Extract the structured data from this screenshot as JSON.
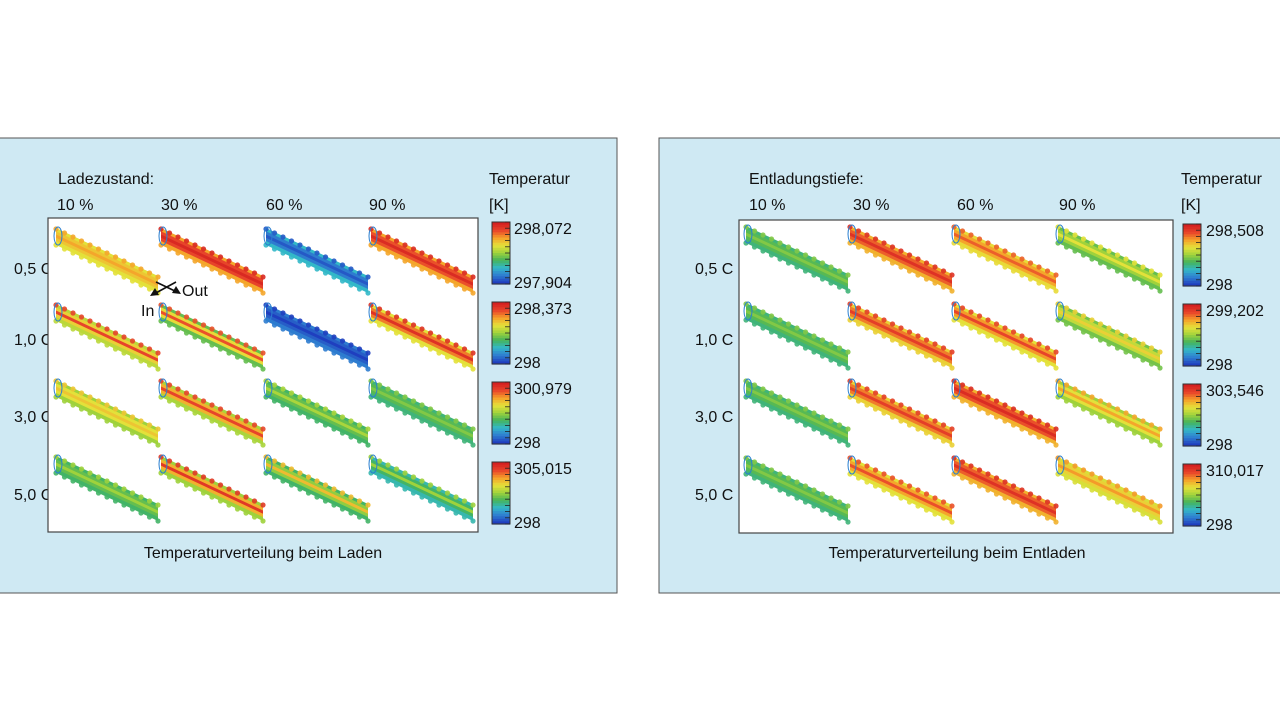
{
  "colors": {
    "panel_bg": "#cfe9f3",
    "panel_border": "#555555",
    "plot_bg": "#ffffff",
    "colormap": [
      "#1f3fbf",
      "#2f7fd0",
      "#33b8c8",
      "#45b35a",
      "#9fd23c",
      "#e6e23a",
      "#f5a12a",
      "#e8452a",
      "#d42020"
    ]
  },
  "panels": [
    {
      "id": "charging",
      "header_label": "Ladezustand:",
      "columns": [
        "10 %",
        "30 %",
        "60 %",
        "90 %"
      ],
      "rows": [
        "0,5 C",
        "1,0 C",
        "3,0 C",
        "5,0 C"
      ],
      "legend_title": "Temperatur",
      "legend_unit": "[K]",
      "caption": "Temperaturverteilung beim Laden",
      "scales": [
        {
          "max": "298,072",
          "min": "297,904"
        },
        {
          "max": "298,373",
          "min": "298"
        },
        {
          "max": "300,979",
          "min": "298"
        },
        {
          "max": "305,015",
          "min": "298"
        }
      ],
      "annotations": {
        "out_label": "Out",
        "in_label": "In"
      },
      "cells": [
        [
          {
            "base": 0.68,
            "edge": 0.62,
            "accent": 0.74
          },
          {
            "base": 0.88,
            "edge": 0.74,
            "accent": 0.97
          },
          {
            "base": 0.12,
            "edge": 0.25,
            "accent": 0.05
          },
          {
            "base": 0.86,
            "edge": 0.74,
            "accent": 0.96
          }
        ],
        [
          {
            "base": 0.66,
            "edge": 0.55,
            "accent": 0.88
          },
          {
            "base": 0.64,
            "edge": 0.42,
            "accent": 0.86
          },
          {
            "base": 0.06,
            "edge": 0.12,
            "accent": 0.0
          },
          {
            "base": 0.8,
            "edge": 0.62,
            "accent": 0.94
          }
        ],
        [
          {
            "base": 0.62,
            "edge": 0.5,
            "accent": 0.68
          },
          {
            "base": 0.72,
            "edge": 0.52,
            "accent": 0.88
          },
          {
            "base": 0.42,
            "edge": 0.36,
            "accent": 0.52
          },
          {
            "base": 0.4,
            "edge": 0.34,
            "accent": 0.46
          }
        ],
        [
          {
            "base": 0.42,
            "edge": 0.36,
            "accent": 0.5
          },
          {
            "base": 0.72,
            "edge": 0.5,
            "accent": 0.92
          },
          {
            "base": 0.48,
            "edge": 0.36,
            "accent": 0.7
          },
          {
            "base": 0.36,
            "edge": 0.28,
            "accent": 0.5
          }
        ]
      ]
    },
    {
      "id": "discharging",
      "header_label": "Entladungstiefe:",
      "columns": [
        "10 %",
        "30 %",
        "60 %",
        "90 %"
      ],
      "rows": [
        "0,5 C",
        "1,0 C",
        "3,0 C",
        "5,0 C"
      ],
      "legend_title": "Temperatur",
      "legend_unit": "[K]",
      "caption": "Temperaturverteilung beim Entladen",
      "scales": [
        {
          "max": "298,508",
          "min": "298"
        },
        {
          "max": "299,202",
          "min": "298"
        },
        {
          "max": "303,546",
          "min": "298"
        },
        {
          "max": "310,017",
          "min": "298"
        }
      ],
      "annotations": {},
      "cells": [
        [
          {
            "base": 0.4,
            "edge": 0.34,
            "accent": 0.46
          },
          {
            "base": 0.84,
            "edge": 0.72,
            "accent": 0.94
          },
          {
            "base": 0.74,
            "edge": 0.64,
            "accent": 0.84
          },
          {
            "base": 0.5,
            "edge": 0.42,
            "accent": 0.62
          }
        ],
        [
          {
            "base": 0.4,
            "edge": 0.34,
            "accent": 0.46
          },
          {
            "base": 0.8,
            "edge": 0.66,
            "accent": 0.9
          },
          {
            "base": 0.76,
            "edge": 0.62,
            "accent": 0.88
          },
          {
            "base": 0.56,
            "edge": 0.44,
            "accent": 0.66
          }
        ],
        [
          {
            "base": 0.4,
            "edge": 0.34,
            "accent": 0.46
          },
          {
            "base": 0.8,
            "edge": 0.66,
            "accent": 0.9
          },
          {
            "base": 0.86,
            "edge": 0.72,
            "accent": 0.96
          },
          {
            "base": 0.62,
            "edge": 0.5,
            "accent": 0.74
          }
        ],
        [
          {
            "base": 0.4,
            "edge": 0.34,
            "accent": 0.46
          },
          {
            "base": 0.74,
            "edge": 0.62,
            "accent": 0.86
          },
          {
            "base": 0.84,
            "edge": 0.72,
            "accent": 0.94
          },
          {
            "base": 0.66,
            "edge": 0.6,
            "accent": 0.76
          }
        ]
      ]
    }
  ]
}
